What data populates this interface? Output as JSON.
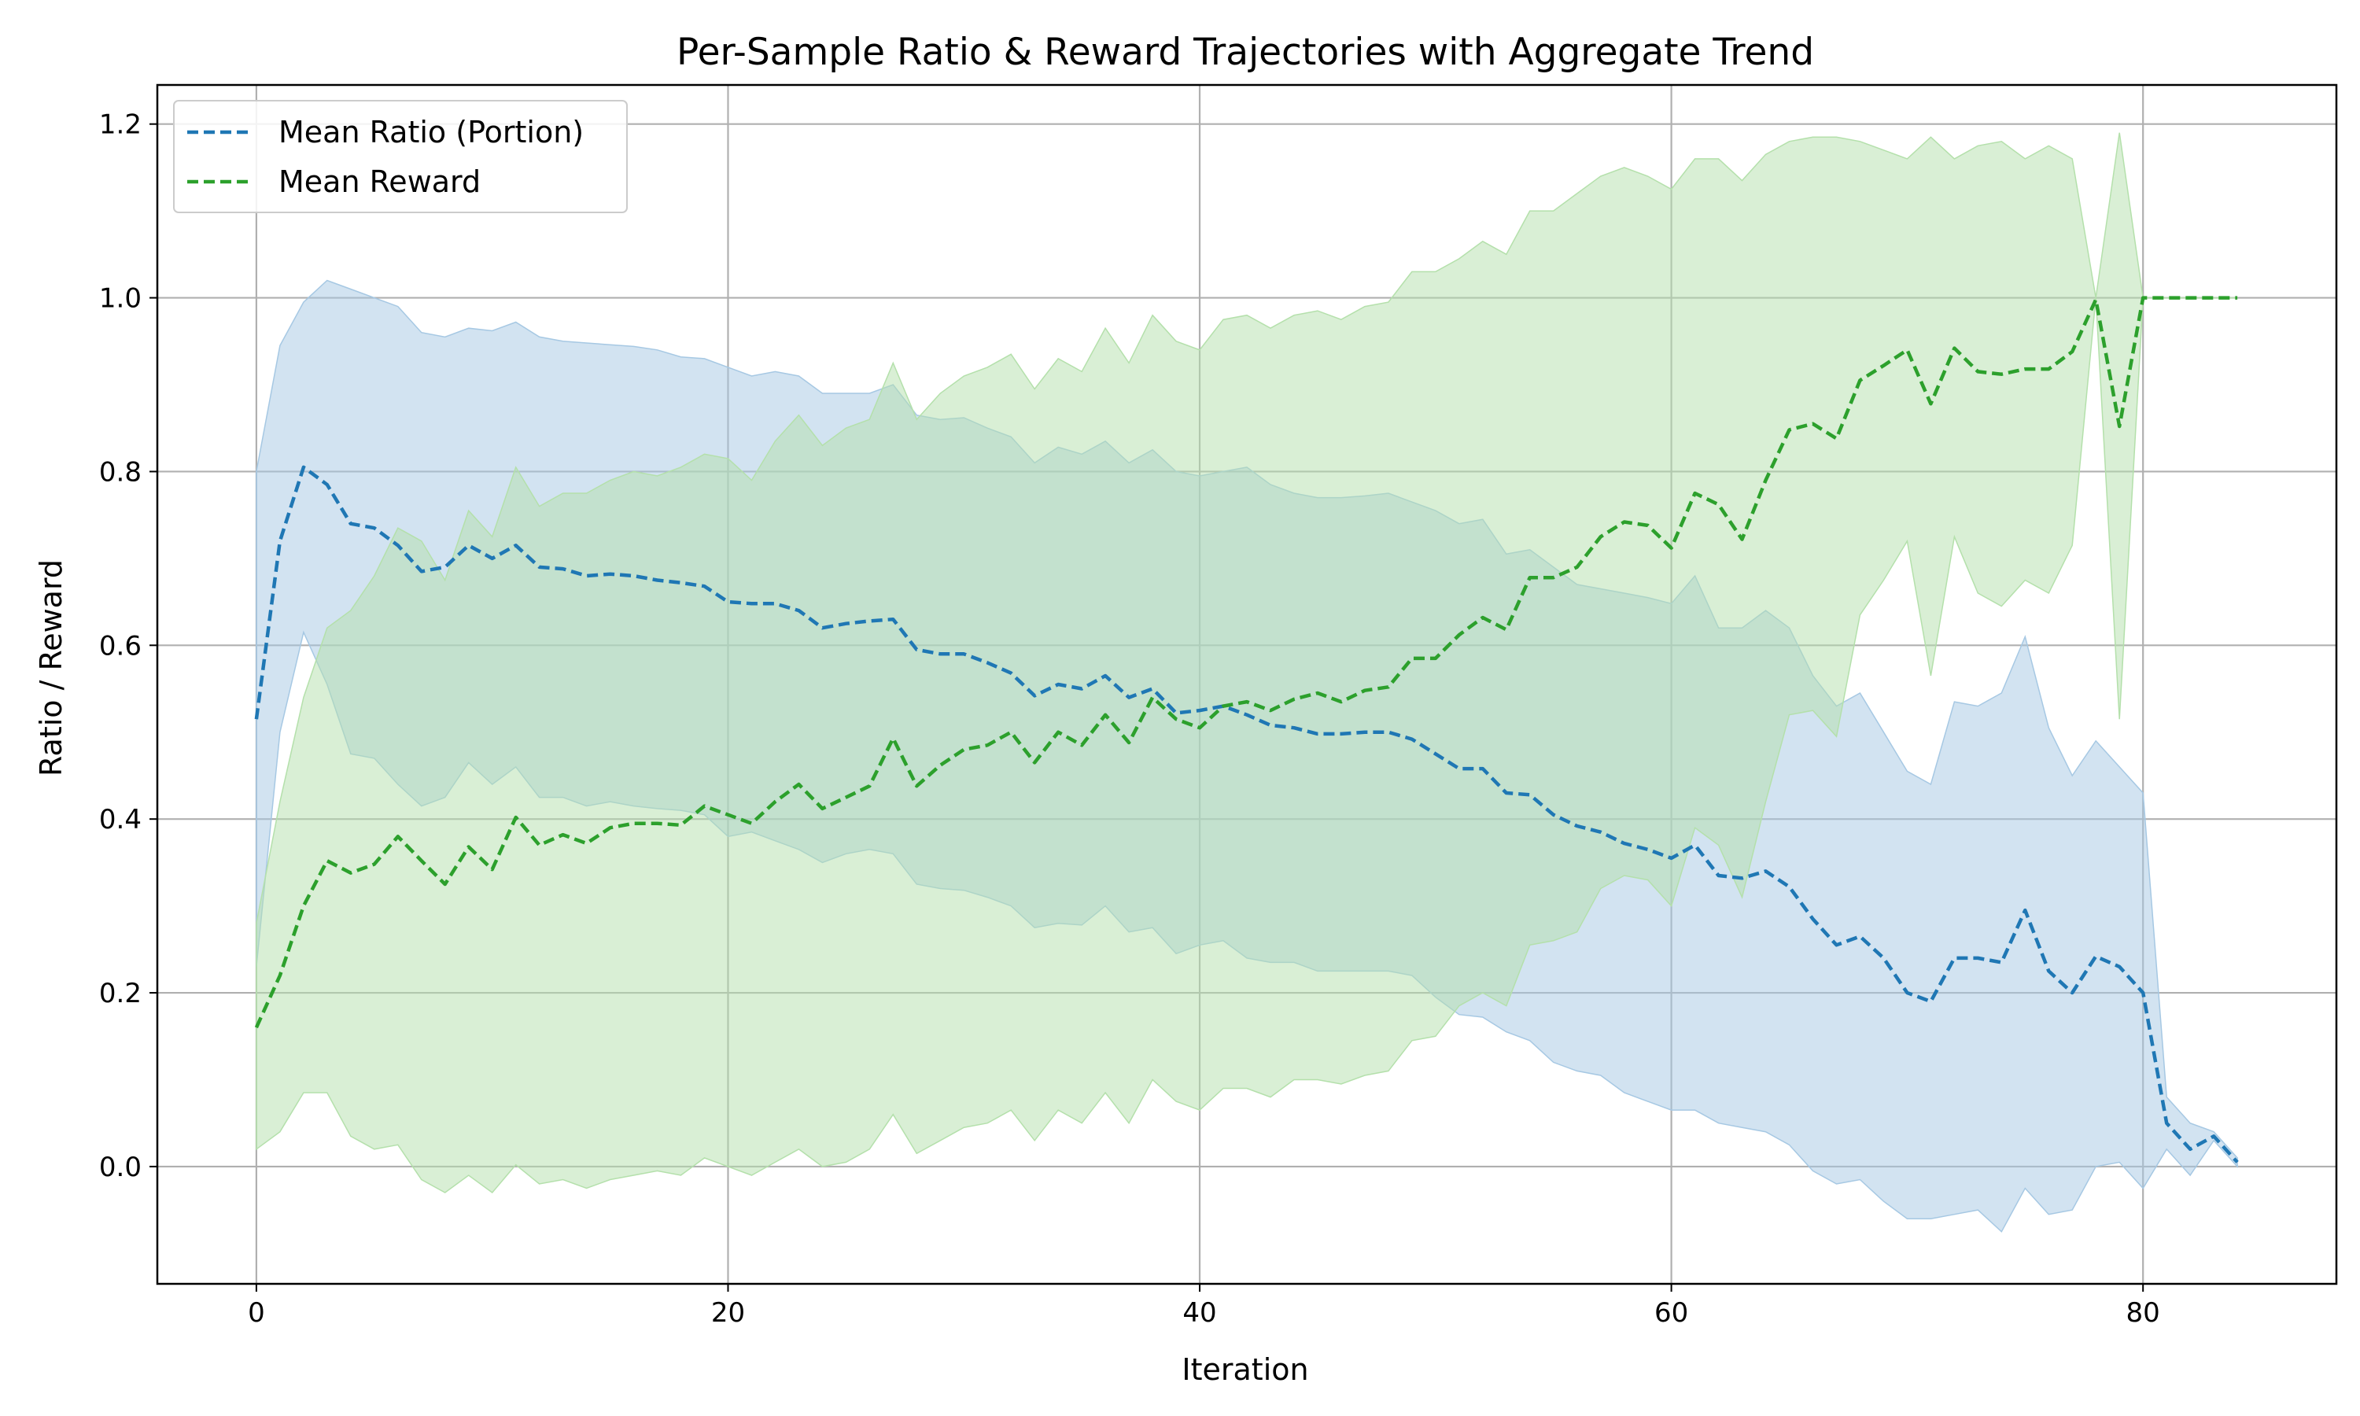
{
  "chart_data": {
    "type": "line",
    "title": "Per-Sample Ratio & Reward Trajectories with Aggregate Trend",
    "xlabel": "Iteration",
    "ylabel": "Ratio / Reward",
    "xlim": [
      -4.2,
      88.2
    ],
    "ylim": [
      -0.135,
      1.245
    ],
    "xticks": [
      0,
      20,
      40,
      60,
      80
    ],
    "yticks": [
      0.0,
      0.2,
      0.4,
      0.6,
      0.8,
      1.0,
      1.2
    ],
    "xtick_labels": [
      "0",
      "20",
      "40",
      "60",
      "80"
    ],
    "ytick_labels": [
      "0.0",
      "0.2",
      "0.4",
      "0.6",
      "0.8",
      "1.0",
      "1.2"
    ],
    "grid": true,
    "legend_position": "top-left",
    "x": [
      0,
      1,
      2,
      3,
      4,
      5,
      6,
      7,
      8,
      9,
      10,
      11,
      12,
      13,
      14,
      15,
      16,
      17,
      18,
      19,
      20,
      21,
      22,
      23,
      24,
      25,
      26,
      27,
      28,
      29,
      30,
      31,
      32,
      33,
      34,
      35,
      36,
      37,
      38,
      39,
      40,
      41,
      42,
      43,
      44,
      45,
      46,
      47,
      48,
      49,
      50,
      51,
      52,
      53,
      54,
      55,
      56,
      57,
      58,
      59,
      60,
      61,
      62,
      63,
      64,
      65,
      66,
      67,
      68,
      69,
      70,
      71,
      72,
      73,
      74,
      75,
      76,
      77,
      78,
      79,
      80,
      81,
      82,
      83,
      84
    ],
    "series": [
      {
        "name": "Mean Ratio (Portion)",
        "color": "#1f77b4",
        "band_color": "#a6c8e3",
        "values": [
          0.515,
          0.72,
          0.805,
          0.785,
          0.74,
          0.735,
          0.715,
          0.685,
          0.69,
          0.715,
          0.7,
          0.715,
          0.69,
          0.688,
          0.68,
          0.682,
          0.68,
          0.675,
          0.672,
          0.668,
          0.65,
          0.648,
          0.648,
          0.64,
          0.62,
          0.625,
          0.628,
          0.63,
          0.595,
          0.59,
          0.59,
          0.58,
          0.568,
          0.542,
          0.555,
          0.55,
          0.565,
          0.54,
          0.55,
          0.522,
          0.525,
          0.53,
          0.52,
          0.508,
          0.505,
          0.498,
          0.498,
          0.5,
          0.5,
          0.492,
          0.475,
          0.458,
          0.458,
          0.43,
          0.428,
          0.405,
          0.392,
          0.385,
          0.372,
          0.365,
          0.355,
          0.37,
          0.335,
          0.332,
          0.34,
          0.322,
          0.285,
          0.255,
          0.265,
          0.24,
          0.2,
          0.19,
          0.24,
          0.24,
          0.235,
          0.295,
          0.225,
          0.2,
          0.242,
          0.23,
          0.2,
          0.05,
          0.02,
          0.035,
          0.005
        ],
        "upper": [
          0.8,
          0.945,
          0.995,
          1.02,
          1.01,
          1.0,
          0.99,
          0.96,
          0.955,
          0.965,
          0.962,
          0.972,
          0.955,
          0.95,
          0.948,
          0.946,
          0.944,
          0.94,
          0.932,
          0.93,
          0.92,
          0.91,
          0.915,
          0.91,
          0.89,
          0.89,
          0.89,
          0.9,
          0.865,
          0.86,
          0.862,
          0.85,
          0.84,
          0.81,
          0.828,
          0.82,
          0.835,
          0.81,
          0.825,
          0.8,
          0.795,
          0.8,
          0.805,
          0.785,
          0.775,
          0.77,
          0.77,
          0.772,
          0.775,
          0.765,
          0.755,
          0.74,
          0.745,
          0.705,
          0.71,
          0.69,
          0.67,
          0.665,
          0.66,
          0.655,
          0.648,
          0.68,
          0.62,
          0.62,
          0.64,
          0.62,
          0.565,
          0.53,
          0.545,
          0.5,
          0.455,
          0.44,
          0.535,
          0.53,
          0.545,
          0.61,
          0.505,
          0.45,
          0.49,
          0.46,
          0.43,
          0.08,
          0.05,
          0.04,
          0.01
        ],
        "lower": [
          0.23,
          0.5,
          0.615,
          0.555,
          0.475,
          0.47,
          0.44,
          0.415,
          0.425,
          0.465,
          0.44,
          0.46,
          0.425,
          0.425,
          0.415,
          0.42,
          0.415,
          0.412,
          0.41,
          0.405,
          0.38,
          0.385,
          0.375,
          0.365,
          0.35,
          0.36,
          0.365,
          0.36,
          0.325,
          0.32,
          0.318,
          0.31,
          0.3,
          0.275,
          0.28,
          0.278,
          0.3,
          0.27,
          0.275,
          0.245,
          0.255,
          0.26,
          0.24,
          0.235,
          0.235,
          0.225,
          0.225,
          0.225,
          0.225,
          0.22,
          0.195,
          0.175,
          0.172,
          0.155,
          0.145,
          0.12,
          0.11,
          0.105,
          0.085,
          0.075,
          0.065,
          0.065,
          0.05,
          0.045,
          0.04,
          0.025,
          -0.005,
          -0.02,
          -0.015,
          -0.04,
          -0.06,
          -0.06,
          -0.055,
          -0.05,
          -0.075,
          -0.025,
          -0.055,
          -0.05,
          0.0,
          0.005,
          -0.025,
          0.02,
          -0.01,
          0.03,
          0.0
        ]
      },
      {
        "name": "Mean Reward",
        "color": "#2ca02c",
        "band_color": "#b4e0ab",
        "values": [
          0.16,
          0.22,
          0.3,
          0.352,
          0.338,
          0.348,
          0.38,
          0.352,
          0.325,
          0.368,
          0.342,
          0.402,
          0.37,
          0.382,
          0.372,
          0.39,
          0.395,
          0.395,
          0.393,
          0.415,
          0.405,
          0.395,
          0.42,
          0.44,
          0.412,
          0.425,
          0.438,
          0.493,
          0.438,
          0.462,
          0.48,
          0.485,
          0.5,
          0.465,
          0.5,
          0.485,
          0.52,
          0.488,
          0.54,
          0.515,
          0.505,
          0.53,
          0.535,
          0.525,
          0.538,
          0.545,
          0.535,
          0.548,
          0.552,
          0.585,
          0.585,
          0.612,
          0.632,
          0.618,
          0.678,
          0.678,
          0.69,
          0.725,
          0.742,
          0.738,
          0.712,
          0.775,
          0.762,
          0.722,
          0.79,
          0.848,
          0.855,
          0.838,
          0.905,
          0.922,
          0.94,
          0.878,
          0.942,
          0.915,
          0.912,
          0.918,
          0.918,
          0.938,
          0.998,
          0.852,
          1.0,
          1.0,
          1.0,
          1.0,
          1.0
        ],
        "upper": [
          0.28,
          0.42,
          0.54,
          0.62,
          0.64,
          0.68,
          0.735,
          0.72,
          0.675,
          0.755,
          0.725,
          0.805,
          0.76,
          0.775,
          0.775,
          0.79,
          0.8,
          0.795,
          0.805,
          0.82,
          0.815,
          0.79,
          0.835,
          0.865,
          0.83,
          0.85,
          0.86,
          0.925,
          0.86,
          0.89,
          0.91,
          0.92,
          0.935,
          0.895,
          0.93,
          0.915,
          0.965,
          0.925,
          0.98,
          0.95,
          0.94,
          0.975,
          0.98,
          0.965,
          0.98,
          0.985,
          0.975,
          0.99,
          0.995,
          1.03,
          1.03,
          1.045,
          1.065,
          1.05,
          1.1,
          1.1,
          1.12,
          1.14,
          1.15,
          1.14,
          1.125,
          1.16,
          1.16,
          1.135,
          1.165,
          1.18,
          1.185,
          1.185,
          1.18,
          1.17,
          1.16,
          1.185,
          1.16,
          1.175,
          1.18,
          1.16,
          1.175,
          1.16,
          1.0,
          1.19,
          1.0,
          1.0,
          1.0,
          1.0,
          1.0
        ],
        "lower": [
          0.02,
          0.04,
          0.085,
          0.085,
          0.035,
          0.02,
          0.025,
          -0.015,
          -0.03,
          -0.01,
          -0.03,
          0.002,
          -0.02,
          -0.015,
          -0.025,
          -0.015,
          -0.01,
          -0.005,
          -0.01,
          0.01,
          0.0,
          -0.01,
          0.005,
          0.02,
          0.0,
          0.005,
          0.02,
          0.06,
          0.015,
          0.03,
          0.045,
          0.05,
          0.065,
          0.03,
          0.065,
          0.05,
          0.085,
          0.05,
          0.1,
          0.075,
          0.065,
          0.09,
          0.09,
          0.08,
          0.1,
          0.1,
          0.095,
          0.105,
          0.11,
          0.145,
          0.15,
          0.185,
          0.2,
          0.185,
          0.255,
          0.26,
          0.27,
          0.32,
          0.335,
          0.33,
          0.3,
          0.39,
          0.37,
          0.31,
          0.42,
          0.52,
          0.525,
          0.495,
          0.635,
          0.675,
          0.72,
          0.565,
          0.725,
          0.66,
          0.645,
          0.675,
          0.66,
          0.715,
          1.0,
          0.515,
          1.0,
          1.0,
          1.0,
          1.0,
          1.0
        ]
      }
    ]
  }
}
